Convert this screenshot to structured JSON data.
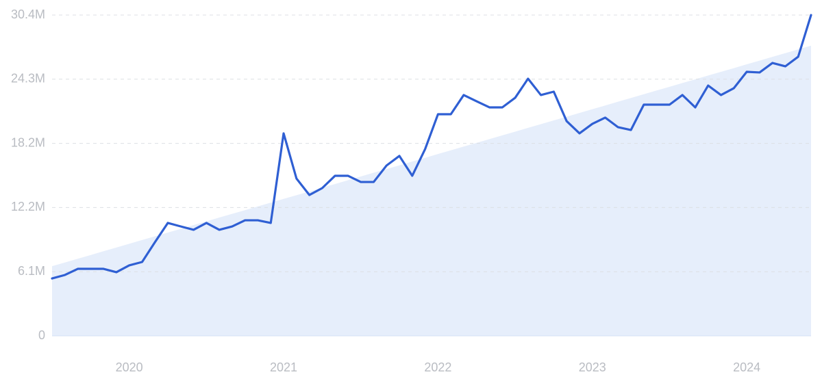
{
  "chart_data": {
    "type": "line",
    "categories": [
      null,
      null,
      null,
      null,
      null,
      null,
      "2020",
      null,
      null,
      null,
      null,
      null,
      null,
      null,
      null,
      null,
      null,
      null,
      "2021",
      null,
      null,
      null,
      null,
      null,
      null,
      null,
      null,
      null,
      null,
      null,
      "2022",
      null,
      null,
      null,
      null,
      null,
      null,
      null,
      null,
      null,
      null,
      null,
      "2023",
      null,
      null,
      null,
      null,
      null,
      null,
      null,
      null,
      null,
      null,
      null,
      "2024",
      null,
      null,
      null,
      null,
      null
    ],
    "series": [
      {
        "color": "#2f5fd3",
        "values": [
          5.44,
          5.77,
          6.35,
          6.35,
          6.35,
          6.03,
          6.68,
          7.0,
          8.88,
          10.7,
          10.37,
          10.05,
          10.7,
          10.05,
          10.37,
          10.95,
          10.95,
          10.7,
          19.19,
          14.91,
          13.35,
          14.0,
          15.17,
          15.17,
          14.58,
          14.58,
          16.14,
          17.05,
          15.17,
          17.7,
          21.0,
          21.0,
          22.82,
          22.23,
          21.65,
          21.65,
          22.56,
          24.37,
          22.82,
          23.14,
          20.35,
          19.19,
          20.09,
          20.68,
          19.77,
          19.51,
          21.91,
          21.91,
          21.91,
          22.82,
          21.65,
          23.72,
          22.82,
          23.47,
          25.02,
          24.96,
          25.86,
          25.54,
          26.45,
          30.4
        ]
      },
      {
        "color": "#e6eefb",
        "values": [
          6.6,
          6.95,
          7.31,
          7.66,
          8.02,
          8.37,
          8.73,
          9.08,
          9.43,
          9.79,
          10.14,
          10.5,
          10.85,
          11.21,
          11.56,
          11.91,
          12.27,
          12.62,
          12.98,
          13.33,
          13.68,
          14.04,
          14.39,
          14.75,
          15.1,
          15.46,
          15.81,
          16.16,
          16.52,
          16.87,
          17.23,
          17.58,
          17.94,
          18.29,
          18.64,
          19.0,
          19.35,
          19.71,
          20.06,
          20.42,
          20.77,
          21.12,
          21.48,
          21.83,
          22.19,
          22.54,
          22.9,
          23.25,
          23.6,
          23.96,
          24.31,
          24.67,
          25.02,
          25.37,
          25.73,
          26.08,
          26.44,
          26.79,
          27.15,
          27.5
        ]
      }
    ],
    "ylim": [
      0,
      30.4
    ],
    "yticks": [
      0,
      {
        "value": 6.08,
        "label": "6.1M"
      },
      {
        "value": 12.16,
        "label": "12.2M"
      },
      {
        "value": 18.24,
        "label": "18.2M"
      },
      {
        "value": 24.32,
        "label": "24.3M"
      },
      {
        "value": 30.4,
        "label": "30.4M"
      }
    ],
    "grid": true
  }
}
